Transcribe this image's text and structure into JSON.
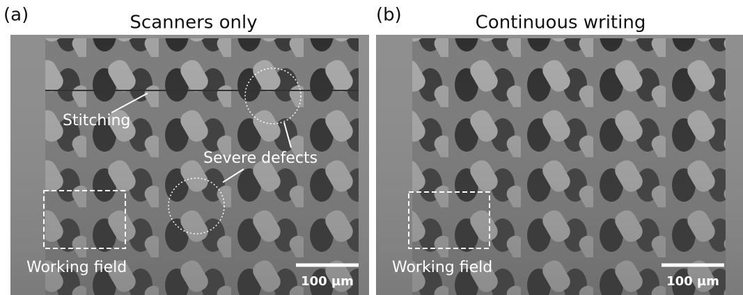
{
  "panels": [
    {
      "label": "(a)",
      "title": "Scanners only",
      "annotations": [
        "Stitching",
        "Severe defects",
        "Working field"
      ],
      "scale_bar": "100 µm"
    },
    {
      "label": "(b)",
      "title": "Continuous writing",
      "annotations": [
        "Working field"
      ],
      "scale_bar": "100 µm"
    }
  ]
}
